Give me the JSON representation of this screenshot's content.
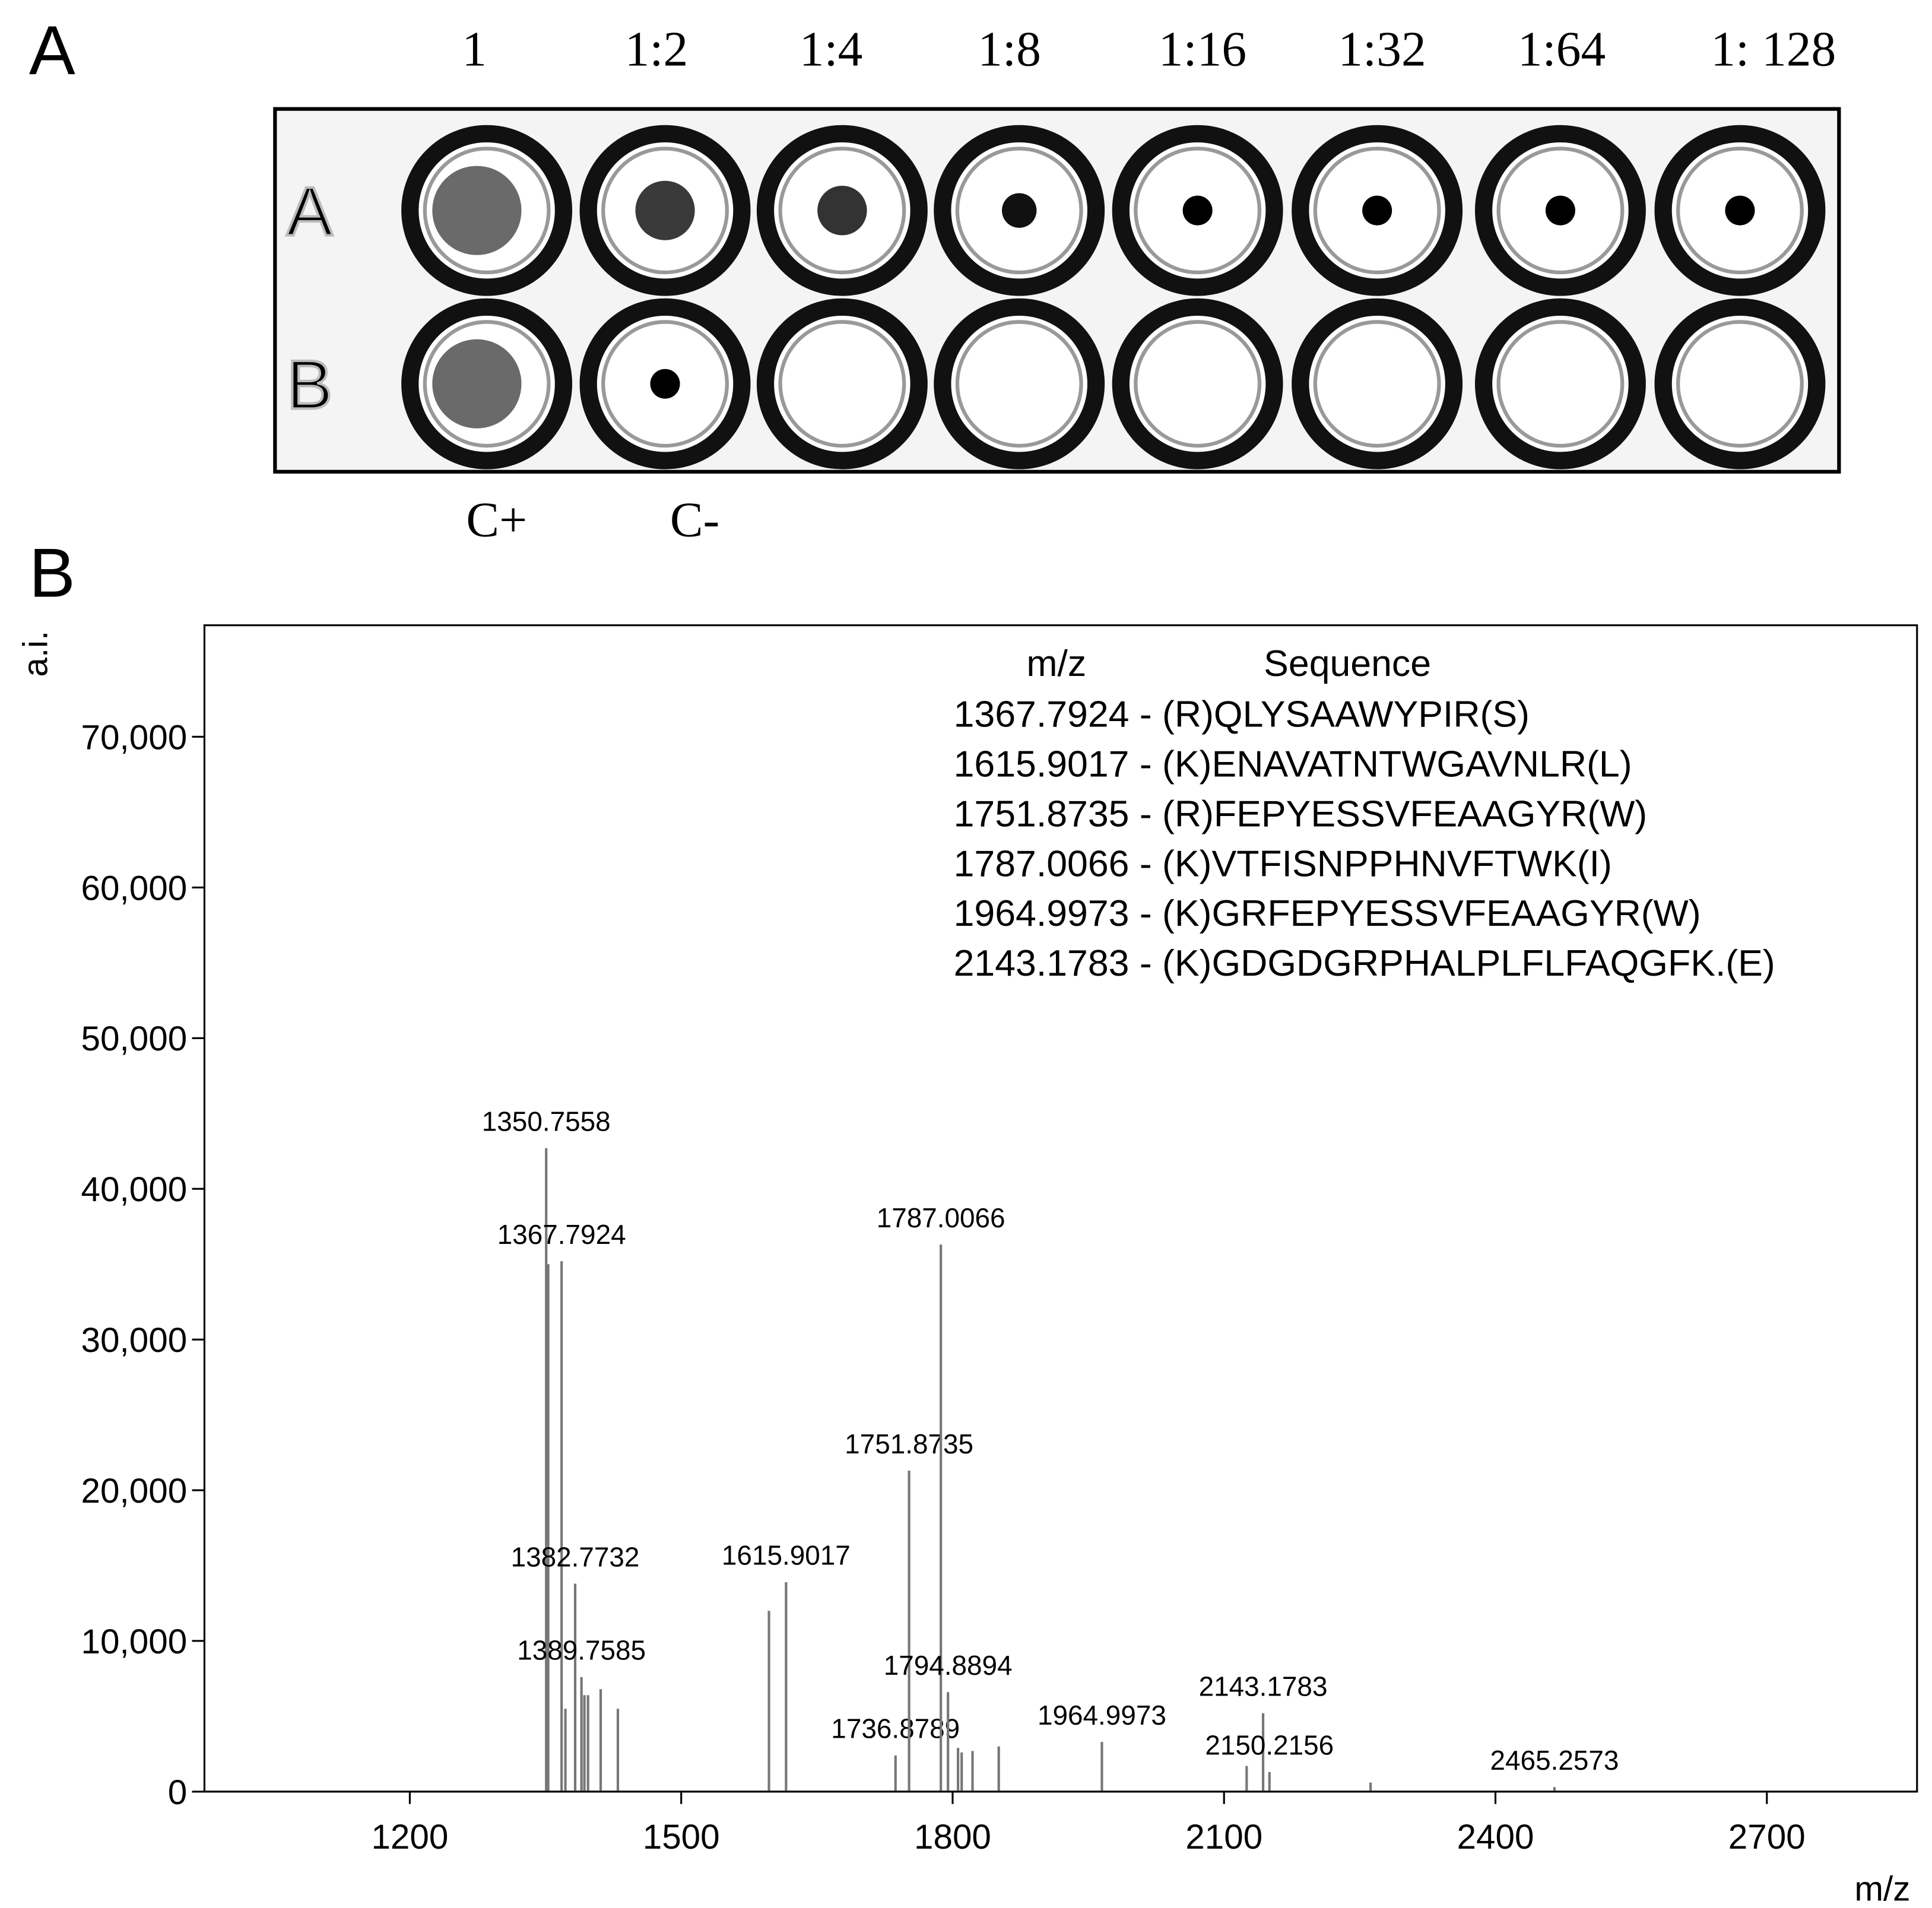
{
  "panel_a": {
    "panel_label": "A",
    "dilutions": [
      "1",
      "1:2",
      "1:4",
      "1:8",
      "1:16",
      "1:32",
      "1:64",
      "1: 128"
    ],
    "plate_rows": [
      "A",
      "B"
    ],
    "controls": [
      "C+",
      "C-"
    ]
  },
  "chart_data": {
    "type": "stem",
    "panel_label": "B",
    "x_label": "m/z",
    "y_label": "a.i.",
    "color": "#777777",
    "xlim": [
      973,
      2866
    ],
    "ylim": [
      0,
      77400
    ],
    "xticks": [
      1200,
      1500,
      1800,
      2100,
      2400,
      2700
    ],
    "yticks": [
      0,
      {
        "value": 10000,
        "label": "10,000"
      },
      {
        "value": 20000,
        "label": "20,000"
      },
      {
        "value": 30000,
        "label": "30,000"
      },
      {
        "value": 40000,
        "label": "40,000"
      },
      {
        "value": 50000,
        "label": "50,000"
      },
      {
        "value": 60000,
        "label": "60,000"
      },
      {
        "value": 70000,
        "label": "70,000"
      }
    ],
    "x": [
      1350.7558,
      1353,
      1367.7924,
      1372,
      1382.7732,
      1389.7585,
      1393,
      1397,
      1411,
      1430,
      1597,
      1615.9017,
      1736.8789,
      1751.8735,
      1787.0066,
      1794.8894,
      1806,
      1810,
      1822,
      1851,
      1964.9973,
      2125,
      2143.1783,
      2150.2156,
      2262,
      2465.2573
    ],
    "values": [
      42700,
      35000,
      35200,
      5500,
      13800,
      7600,
      6400,
      6400,
      6800,
      5500,
      12000,
      13900,
      2400,
      21300,
      36300,
      6600,
      2900,
      2600,
      2700,
      3000,
      3300,
      1700,
      5200,
      1300,
      600,
      300
    ],
    "x_labels": [
      "1350.7558",
      null,
      "1367.7924",
      null,
      "1382.7732",
      "1389.7585",
      null,
      null,
      null,
      null,
      null,
      "1615.9017",
      "1736.8789",
      "1751.8735",
      "1787.0066",
      "1794.8894",
      null,
      null,
      null,
      null,
      "1964.9973",
      null,
      "2143.1783",
      "2150.2156",
      null,
      "2465.2573"
    ],
    "annotation_table": {
      "header": [
        "m/z",
        "Sequence"
      ],
      "rows": [
        "1367.7924 - (R)QLYSAAWYPIR(S)",
        "1615.9017 - (K)ENAVATNTWGAVNLR(L)",
        "1751.8735 - (R)FEPYESSVFEAAGYR(W)",
        "1787.0066 - (K)VTFISNPPHNVFTWK(I)",
        "1964.9973 - (K)GRFEPYESSVFEAAGYR(W)",
        "2143.1783 - (K)GDGDGRPHALPLFLFAQGFK.(E)"
      ]
    }
  }
}
